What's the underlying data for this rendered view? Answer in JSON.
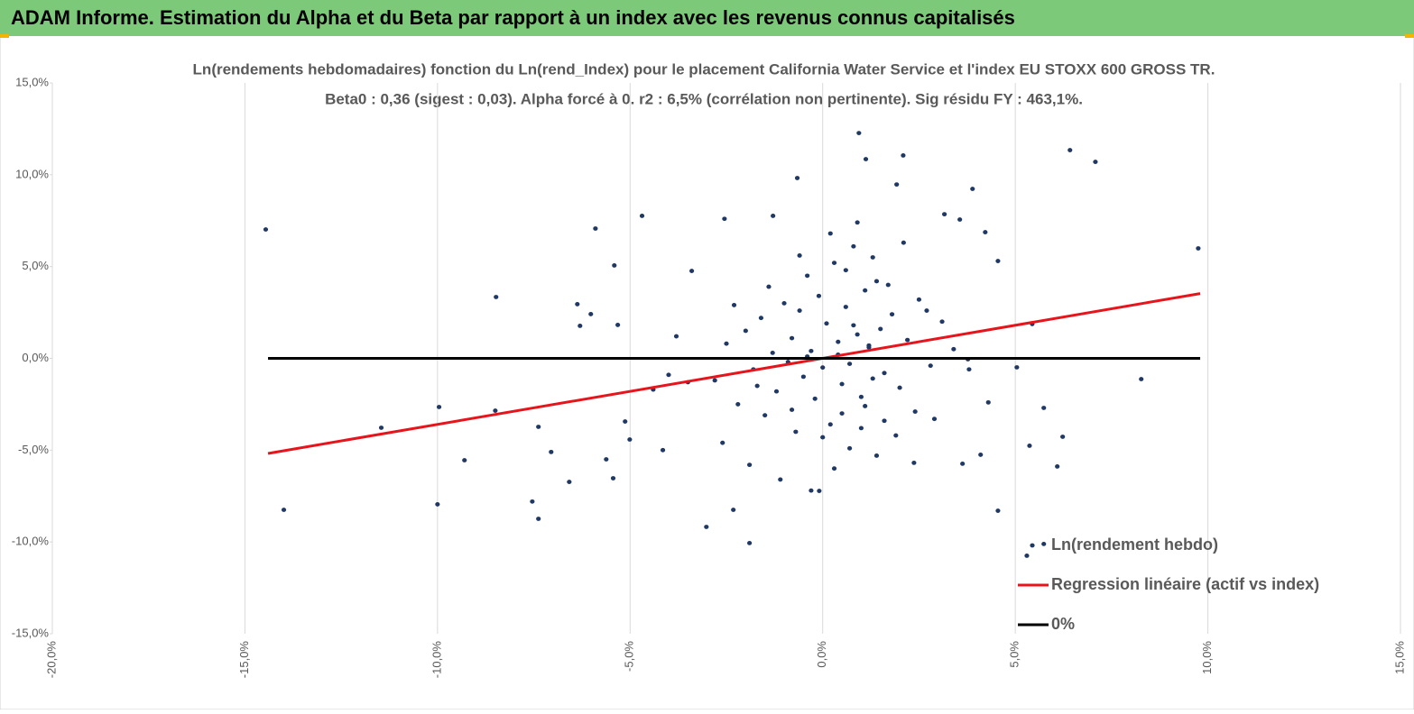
{
  "header": {
    "title": "ADAM Informe. Estimation du Alpha et du Beta par rapport à un index avec les revenus connus capitalisés"
  },
  "chart_data": {
    "type": "scatter",
    "title": "Ln(rendements hebdomadaires) fonction du Ln(rend_Index) pour le placement California Water Service   et l'index EU STOXX 600 GROSS TR.",
    "subtitle": "Beta0 : 0,36 (sigest : 0,03).  Alpha forcé à 0. r2 : 6,5% (corrélation non pertinente). Sig résidu FY : 463,1%.",
    "xlim": [
      -20,
      15
    ],
    "ylim": [
      -15,
      15
    ],
    "xticks": [
      {
        "value": -20,
        "label": "-20,0%"
      },
      {
        "value": -15,
        "label": "-15,0%"
      },
      {
        "value": -10,
        "label": "-10,0%"
      },
      {
        "value": -5,
        "label": "-5,0%"
      },
      {
        "value": 0,
        "label": "0,0%"
      },
      {
        "value": 5,
        "label": "5,0%"
      },
      {
        "value": 10,
        "label": "10,0%"
      },
      {
        "value": 15,
        "label": "15,0%"
      }
    ],
    "yticks": [
      {
        "value": -15,
        "label": "-15,0%"
      },
      {
        "value": -10,
        "label": "-10,0%"
      },
      {
        "value": -5,
        "label": "-5,0%"
      },
      {
        "value": 0,
        "label": "0,0%"
      },
      {
        "value": 5,
        "label": "5,0%"
      },
      {
        "value": 10,
        "label": "10,0%"
      },
      {
        "value": 15,
        "label": "15,0%"
      }
    ],
    "grid": true,
    "legend": "lower right",
    "series": [
      {
        "name": "Ln(rendement hebdo)",
        "type": "scatter",
        "color": "#203864",
        "x": [
          -14.46,
          -13.99,
          -11.46,
          -9.96,
          -10.0,
          -9.3,
          -8.48,
          -8.5,
          -7.54,
          -7.38,
          -7.38,
          -7.05,
          -6.58,
          -6.37,
          -6.3,
          -6.02,
          -5.9,
          -5.62,
          -5.44,
          -5.41,
          -5.32,
          -4.69,
          -5.01,
          -5.13,
          -4.15,
          -3.4,
          -3.02,
          -2.55,
          -2.32,
          -1.9,
          -1.29,
          -0.66,
          -0.09,
          0.94,
          1.12,
          2.09,
          1.92,
          3.89,
          4.22,
          4.55,
          4.55,
          5.74,
          5.3,
          5.37,
          5.74,
          6.23,
          6.09,
          6.42,
          7.08,
          8.27,
          9.75,
          5.44,
          5.04,
          4.1,
          3.63,
          2.37,
          3.16,
          3.56,
          3.77,
          -2.8,
          -2.5,
          -2.2,
          -2.0,
          -1.8,
          -1.6,
          -1.5,
          -1.3,
          -1.2,
          -1.0,
          -0.9,
          -0.8,
          -0.7,
          -0.6,
          -0.5,
          -0.4,
          -0.3,
          -0.2,
          -0.1,
          0.0,
          0.1,
          0.2,
          0.3,
          0.4,
          0.5,
          0.6,
          0.7,
          0.8,
          0.9,
          1.0,
          1.1,
          1.2,
          1.3,
          1.4,
          1.5,
          1.6,
          1.8,
          2.0,
          2.2,
          2.5,
          2.8,
          3.1,
          3.4,
          -3.5,
          -4.0,
          -4.4,
          -3.8,
          3.8,
          4.3,
          -2.6,
          -1.9,
          -1.1,
          -0.3,
          0.3,
          0.7,
          1.0,
          1.4,
          1.9,
          2.4,
          2.9,
          -2.3,
          -1.4,
          -0.6,
          0.2,
          0.6,
          0.9,
          1.3,
          1.7,
          2.1,
          2.7,
          -0.8,
          0.0,
          0.5,
          1.1,
          1.6,
          -1.7,
          -0.4,
          0.4,
          0.8,
          1.2
        ],
        "values": [
          7.02,
          -8.25,
          -3.78,
          -2.65,
          -7.95,
          -5.55,
          3.34,
          -2.85,
          -7.8,
          -8.74,
          -3.73,
          -5.1,
          -6.73,
          2.95,
          1.77,
          2.41,
          7.07,
          -5.5,
          -6.53,
          5.06,
          1.82,
          7.76,
          -4.42,
          -3.44,
          -5.0,
          4.76,
          -9.18,
          7.6,
          -8.25,
          -10.06,
          7.76,
          9.82,
          -7.22,
          12.27,
          10.85,
          11.05,
          9.47,
          9.23,
          6.87,
          5.3,
          -8.3,
          -10.11,
          -10.75,
          -4.76,
          -2.7,
          -4.27,
          -5.89,
          11.34,
          10.7,
          -1.13,
          5.99,
          1.87,
          -0.49,
          -5.25,
          -5.74,
          -5.69,
          7.85,
          7.56,
          -0.05,
          -1.2,
          0.8,
          -2.5,
          1.5,
          -0.6,
          2.2,
          -3.1,
          0.3,
          -1.8,
          3.0,
          -0.2,
          1.1,
          -4.0,
          2.6,
          -1.0,
          4.5,
          0.4,
          -2.2,
          3.4,
          -0.5,
          1.9,
          -3.6,
          5.2,
          0.9,
          -1.4,
          2.8,
          -0.3,
          6.1,
          1.3,
          -2.1,
          3.7,
          0.6,
          -1.1,
          4.2,
          1.6,
          -0.8,
          2.4,
          -1.6,
          1.0,
          3.2,
          -0.4,
          2.0,
          0.5,
          -1.3,
          -0.9,
          -1.7,
          1.2,
          -0.6,
          -2.4,
          -4.6,
          -5.8,
          -6.6,
          -7.2,
          -6.0,
          -4.9,
          -3.8,
          -5.3,
          -4.2,
          -2.9,
          -3.3,
          2.9,
          3.9,
          5.6,
          6.8,
          4.8,
          7.4,
          5.5,
          4.0,
          6.3,
          2.6,
          -2.8,
          -4.3,
          -3.0,
          -2.6,
          -3.4,
          -1.5,
          0.1,
          0.2,
          1.8,
          0.7
        ]
      },
      {
        "name": "Regression linéaire (actif vs index)",
        "type": "line",
        "color": "#e8141b",
        "x": [
          -14.4,
          9.8
        ],
        "values": [
          -5.18,
          3.53
        ]
      },
      {
        "name": "0%",
        "type": "line",
        "color": "#000000",
        "x": [
          -14.4,
          9.8
        ],
        "values": [
          0,
          0
        ]
      }
    ]
  }
}
